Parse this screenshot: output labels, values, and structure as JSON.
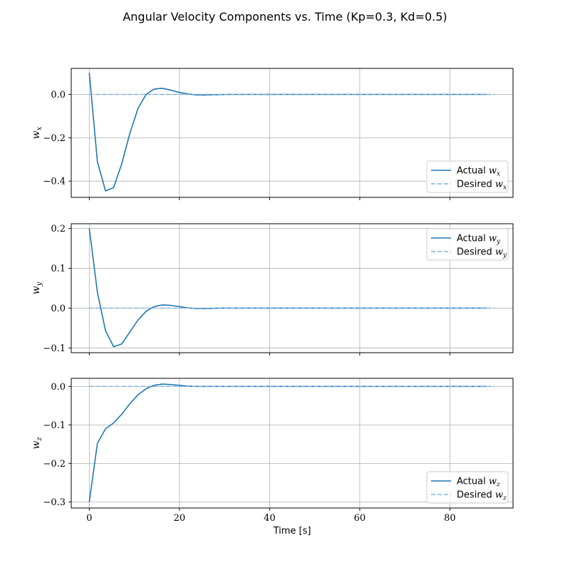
{
  "figure": {
    "title": "Angular Velocity Components vs.  Time (Kp=0.3, Kd=0.5)"
  },
  "colors": {
    "actual": "#1f77b4",
    "desired": "#7fb2e0",
    "grid": "#b0b0b0"
  },
  "chart_data": [
    {
      "type": "line",
      "ylabel_base": "w",
      "ylabel_sub": "x",
      "xlim": [
        -4,
        94
      ],
      "ylim": [
        -0.475,
        0.12
      ],
      "yticks": [
        0.0,
        -0.2,
        -0.4
      ],
      "ytick_labels": [
        "0.0",
        "−0.2",
        "−0.4"
      ],
      "xticks": [
        0,
        20,
        40,
        60,
        80
      ],
      "show_xtick_labels": false,
      "grid": true,
      "legend": {
        "placement": "lower-right",
        "entries": [
          {
            "prefix": "Actual ",
            "math_base": "w",
            "math_sub": "x"
          },
          {
            "prefix": "Desired ",
            "math_base": "w",
            "math_sub": "x"
          }
        ]
      },
      "series": [
        {
          "role": "actual",
          "x": [
            0,
            1.8,
            3.6,
            5.4,
            7.2,
            9.0,
            10.8,
            12.6,
            14.4,
            16.2,
            18.0,
            19.8,
            21.6,
            23.4,
            25.2,
            27.0,
            28.8,
            30.6,
            32.4,
            36.0,
            40.0,
            50.0,
            60.0,
            70.0,
            80.0,
            88.0
          ],
          "y": [
            0.1,
            -0.31,
            -0.445,
            -0.43,
            -0.32,
            -0.18,
            -0.065,
            0.0,
            0.025,
            0.028,
            0.02,
            0.01,
            0.003,
            -0.002,
            -0.003,
            -0.002,
            -0.001,
            0.0,
            0.0,
            0.0,
            0.0,
            0.0,
            0.0,
            0.0,
            0.0,
            0.0
          ]
        },
        {
          "role": "desired",
          "x": [
            0,
            90
          ],
          "y": [
            0.0,
            0.0
          ]
        }
      ]
    },
    {
      "type": "line",
      "ylabel_base": "w",
      "ylabel_sub": "y",
      "xlim": [
        -4,
        94
      ],
      "ylim": [
        -0.112,
        0.212
      ],
      "yticks": [
        0.2,
        0.1,
        0.0,
        -0.1
      ],
      "ytick_labels": [
        "0.2",
        "0.1",
        "0.0",
        "−0.1"
      ],
      "xticks": [
        0,
        20,
        40,
        60,
        80
      ],
      "show_xtick_labels": false,
      "grid": true,
      "legend": {
        "placement": "upper-right",
        "entries": [
          {
            "prefix": "Actual ",
            "math_base": "w",
            "math_sub": "y"
          },
          {
            "prefix": "Desired ",
            "math_base": "w",
            "math_sub": "y"
          }
        ]
      },
      "series": [
        {
          "role": "actual",
          "x": [
            0,
            1.8,
            3.6,
            5.4,
            7.2,
            9.0,
            10.8,
            12.6,
            14.4,
            16.2,
            18.0,
            19.8,
            21.6,
            23.4,
            25.2,
            27.0,
            28.8,
            30.6,
            32.4,
            36.0,
            40.0,
            50.0,
            60.0,
            70.0,
            80.0,
            88.0
          ],
          "y": [
            0.2,
            0.04,
            -0.057,
            -0.097,
            -0.09,
            -0.06,
            -0.03,
            -0.008,
            0.004,
            0.008,
            0.007,
            0.004,
            0.001,
            -0.001,
            -0.001,
            -0.001,
            0.0,
            0.0,
            0.0,
            0.0,
            0.0,
            0.0,
            0.0,
            0.0,
            0.0,
            0.0
          ]
        },
        {
          "role": "desired",
          "x": [
            0,
            90
          ],
          "y": [
            0.0,
            0.0
          ]
        }
      ]
    },
    {
      "type": "line",
      "ylabel_base": "w",
      "ylabel_sub": "z",
      "xlim": [
        -4,
        94
      ],
      "ylim": [
        -0.316,
        0.021
      ],
      "yticks": [
        0.0,
        -0.1,
        -0.2,
        -0.3
      ],
      "ytick_labels": [
        "0.0",
        "−0.1",
        "−0.2",
        "−0.3"
      ],
      "xticks": [
        0,
        20,
        40,
        60,
        80
      ],
      "xtick_labels": [
        "0",
        "20",
        "40",
        "60",
        "80"
      ],
      "show_xtick_labels": true,
      "xlabel": "Time [s]",
      "grid": true,
      "legend": {
        "placement": "lower-right",
        "entries": [
          {
            "prefix": "Actual ",
            "math_base": "w",
            "math_sub": "z"
          },
          {
            "prefix": "Desired ",
            "math_base": "w",
            "math_sub": "z"
          }
        ]
      },
      "series": [
        {
          "role": "actual",
          "x": [
            0,
            1.8,
            3.6,
            5.4,
            7.2,
            9.0,
            10.8,
            12.6,
            14.4,
            16.2,
            18.0,
            19.8,
            21.6,
            23.4,
            25.2,
            27.0,
            28.8,
            30.6,
            32.4,
            36.0,
            40.0,
            50.0,
            60.0,
            70.0,
            80.0,
            88.0
          ],
          "y": [
            -0.3,
            -0.148,
            -0.11,
            -0.095,
            -0.072,
            -0.045,
            -0.022,
            -0.006,
            0.003,
            0.006,
            0.005,
            0.003,
            0.001,
            0.0,
            0.0,
            0.0,
            0.0,
            0.0,
            0.0,
            0.0,
            0.0,
            0.0,
            0.0,
            0.0,
            0.0,
            0.0
          ]
        },
        {
          "role": "desired",
          "x": [
            0,
            90
          ],
          "y": [
            0.0,
            0.0
          ]
        }
      ]
    }
  ]
}
